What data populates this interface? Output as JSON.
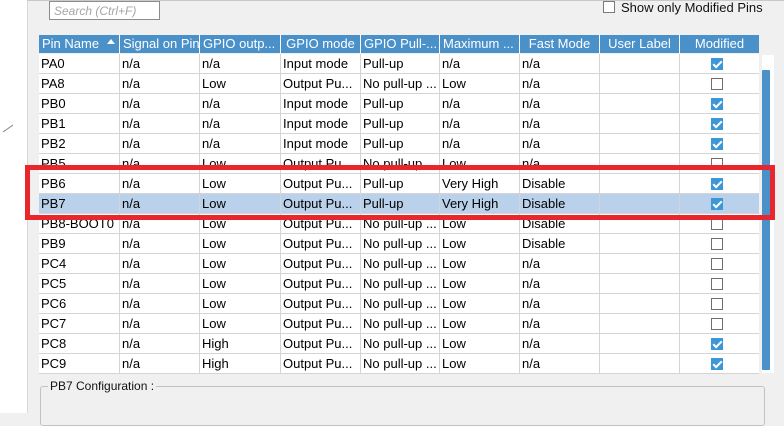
{
  "search": {
    "placeholder": "Search (Ctrl+F)"
  },
  "filter": {
    "label": "Show only Modified Pins",
    "checked": false
  },
  "columns": [
    "Pin Name",
    "Signal on Pin",
    "GPIO outp...",
    "GPIO mode",
    "GPIO Pull-...",
    "Maximum ...",
    "Fast Mode",
    "User Label",
    "Modified"
  ],
  "rows": [
    {
      "pin": "PA0",
      "signal": "n/a",
      "output": "n/a",
      "mode": "Input mode",
      "pull": "Pull-up",
      "speed": "n/a",
      "fast": "n/a",
      "label": "",
      "modified": true,
      "selected": false
    },
    {
      "pin": "PA8",
      "signal": "n/a",
      "output": "Low",
      "mode": "Output Pu...",
      "pull": "No pull-up ...",
      "speed": "Low",
      "fast": "n/a",
      "label": "",
      "modified": false,
      "selected": false
    },
    {
      "pin": "PB0",
      "signal": "n/a",
      "output": "n/a",
      "mode": "Input mode",
      "pull": "Pull-up",
      "speed": "n/a",
      "fast": "n/a",
      "label": "",
      "modified": true,
      "selected": false
    },
    {
      "pin": "PB1",
      "signal": "n/a",
      "output": "n/a",
      "mode": "Input mode",
      "pull": "Pull-up",
      "speed": "n/a",
      "fast": "n/a",
      "label": "",
      "modified": true,
      "selected": false
    },
    {
      "pin": "PB2",
      "signal": "n/a",
      "output": "n/a",
      "mode": "Input mode",
      "pull": "Pull-up",
      "speed": "n/a",
      "fast": "n/a",
      "label": "",
      "modified": true,
      "selected": false
    },
    {
      "pin": "PB5",
      "signal": "n/a",
      "output": "Low",
      "mode": "Output Pu...",
      "pull": "No pull-up ...",
      "speed": "Low",
      "fast": "n/a",
      "label": "",
      "modified": false,
      "selected": false
    },
    {
      "pin": "PB6",
      "signal": "n/a",
      "output": "Low",
      "mode": "Output Pu...",
      "pull": "Pull-up",
      "speed": "Very High",
      "fast": "Disable",
      "label": "",
      "modified": true,
      "selected": false
    },
    {
      "pin": "PB7",
      "signal": "n/a",
      "output": "Low",
      "mode": "Output Pu...",
      "pull": "Pull-up",
      "speed": "Very High",
      "fast": "Disable",
      "label": "",
      "modified": true,
      "selected": true
    },
    {
      "pin": "PB8-BOOT0",
      "signal": "n/a",
      "output": "Low",
      "mode": "Output Pu...",
      "pull": "No pull-up ...",
      "speed": "Low",
      "fast": "Disable",
      "label": "",
      "modified": false,
      "selected": false
    },
    {
      "pin": "PB9",
      "signal": "n/a",
      "output": "Low",
      "mode": "Output Pu...",
      "pull": "No pull-up ...",
      "speed": "Low",
      "fast": "Disable",
      "label": "",
      "modified": false,
      "selected": false
    },
    {
      "pin": "PC4",
      "signal": "n/a",
      "output": "Low",
      "mode": "Output Pu...",
      "pull": "No pull-up ...",
      "speed": "Low",
      "fast": "n/a",
      "label": "",
      "modified": false,
      "selected": false
    },
    {
      "pin": "PC5",
      "signal": "n/a",
      "output": "Low",
      "mode": "Output Pu...",
      "pull": "No pull-up ...",
      "speed": "Low",
      "fast": "n/a",
      "label": "",
      "modified": false,
      "selected": false
    },
    {
      "pin": "PC6",
      "signal": "n/a",
      "output": "Low",
      "mode": "Output Pu...",
      "pull": "No pull-up ...",
      "speed": "Low",
      "fast": "n/a",
      "label": "",
      "modified": false,
      "selected": false
    },
    {
      "pin": "PC7",
      "signal": "n/a",
      "output": "Low",
      "mode": "Output Pu...",
      "pull": "No pull-up ...",
      "speed": "Low",
      "fast": "n/a",
      "label": "",
      "modified": false,
      "selected": false
    },
    {
      "pin": "PC8",
      "signal": "n/a",
      "output": "High",
      "mode": "Output Pu...",
      "pull": "No pull-up ...",
      "speed": "Low",
      "fast": "n/a",
      "label": "",
      "modified": true,
      "selected": false
    },
    {
      "pin": "PC9",
      "signal": "n/a",
      "output": "High",
      "mode": "Output Pu...",
      "pull": "No pull-up ...",
      "speed": "Low",
      "fast": "n/a",
      "label": "",
      "modified": true,
      "selected": false
    }
  ],
  "config": {
    "label": "PB7 Configuration :"
  },
  "colors": {
    "header_bg": "#4a90c9",
    "selected_row": "#b9d1ea",
    "highlight_border": "#e8262b",
    "checkbox_on": "#3c97d6"
  },
  "icons": {
    "sort": "sort-ascending-icon",
    "check": "checkmark-icon"
  }
}
